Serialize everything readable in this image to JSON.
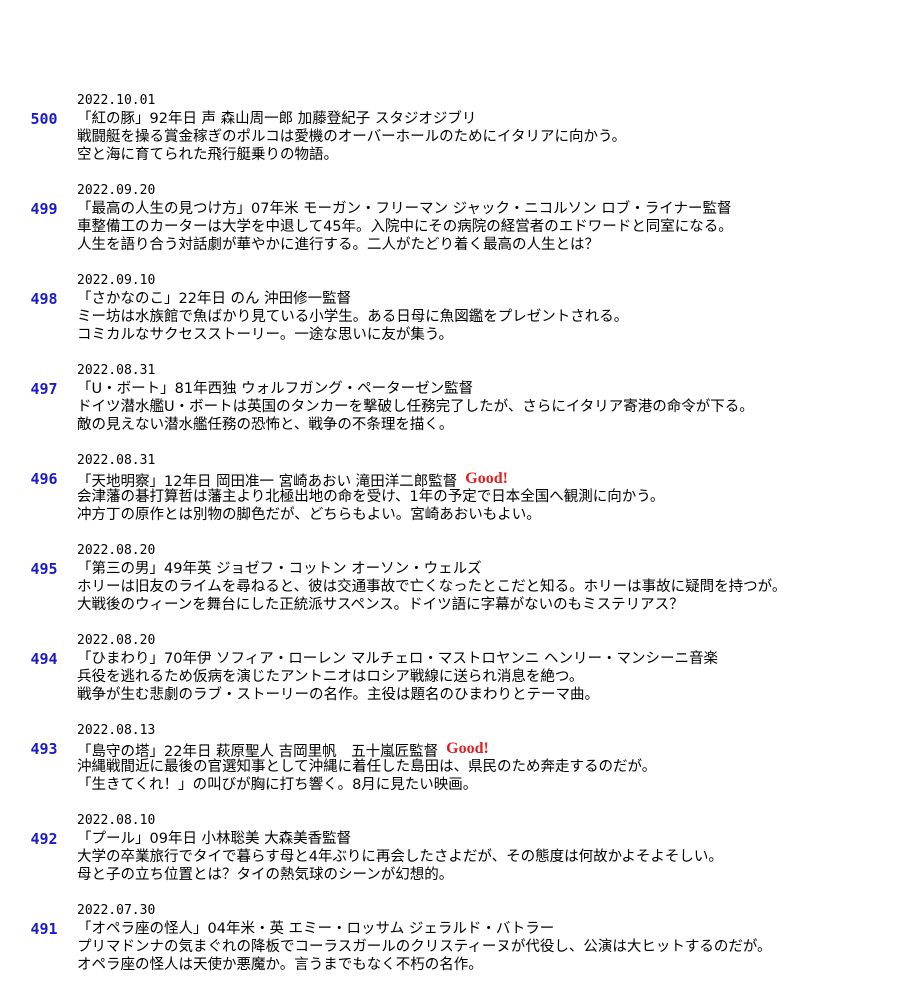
{
  "entries": [
    {
      "number": "500",
      "date": "2022.10.01",
      "title": "「紅の豚」92年日 声 森山周一郎 加藤登紀子 スタジオジブリ",
      "lines": [
        "戦闘艇を操る賞金稼ぎのポルコは愛機のオーバーホールのためにイタリアに向かう。",
        "空と海に育てられた飛行艇乗りの物語。"
      ]
    },
    {
      "number": "499",
      "date": "2022.09.20",
      "title": "「最高の人生の見つけ方」07年米 モーガン・フリーマン ジャック・ニコルソン ロブ・ライナー監督",
      "lines": [
        "車整備工のカーターは大学を中退して45年。入院中にその病院の経営者のエドワードと同室になる。",
        "人生を語り合う対話劇が華やかに進行する。二人がたどり着く最高の人生とは？"
      ]
    },
    {
      "number": "498",
      "date": "2022.09.10",
      "title": "「さかなのこ」22年日 のん 沖田修一監督",
      "lines": [
        "ミー坊は水族館で魚ばかり見ている小学生。ある日母に魚図鑑をプレゼントされる。",
        "コミカルなサクセスストーリー。一途な思いに友が集う。"
      ]
    },
    {
      "number": "497",
      "date": "2022.08.31",
      "title": "「U・ボート」81年西独 ウォルフガング・ペーターゼン監督",
      "lines": [
        "ドイツ潜水艦U・ボートは英国のタンカーを撃破し任務完了したが、さらにイタリア寄港の命令が下る。",
        "敵の見えない潜水艦任務の恐怖と、戦争の不条理を描く。"
      ]
    },
    {
      "number": "496",
      "date": "2022.08.31",
      "title": "「天地明察」12年日 岡田准一 宮崎あおい 滝田洋二郎監督",
      "good": "Good!",
      "lines": [
        "会津藩の碁打算哲は藩主より北極出地の命を受け、1年の予定で日本全国へ観測に向かう。",
        "冲方丁の原作とは別物の脚色だが、どちらもよい。宮崎あおいもよい。"
      ]
    },
    {
      "number": "495",
      "date": "2022.08.20",
      "title": "「第三の男」49年英 ジョゼフ・コットン オーソン・ウェルズ",
      "lines": [
        "ホリーは旧友のライムを尋ねると、彼は交通事故で亡くなったとこだと知る。ホリーは事故に疑問を持つが。",
        "大戦後のウィーンを舞台にした正統派サスペンス。ドイツ語に字幕がないのもミステリアス？"
      ]
    },
    {
      "number": "494",
      "date": "2022.08.20",
      "title": "「ひまわり」70年伊 ソフィア・ローレン マルチェロ・マストロヤンニ ヘンリー・マンシーニ音楽",
      "lines": [
        "兵役を逃れるため仮病を演じたアントニオはロシア戦線に送られ消息を絶つ。",
        "戦争が生む悲劇のラブ・ストーリーの名作。主役は題名のひまわりとテーマ曲。"
      ]
    },
    {
      "number": "493",
      "date": "2022.08.13",
      "title": "「島守の塔」22年日 萩原聖人 吉岡里帆　五十嵐匠監督",
      "good": "Good!",
      "lines": [
        "沖縄戦間近に最後の官選知事として沖縄に着任した島田は、県民のため奔走するのだが。",
        "「生きてくれ！」の叫びが胸に打ち響く。8月に見たい映画。"
      ]
    },
    {
      "number": "492",
      "date": "2022.08.10",
      "title": "「プール」09年日 小林聡美 大森美香監督",
      "lines": [
        "大学の卒業旅行でタイで暮らす母と4年ぶりに再会したさよだが、その態度は何故かよそよそしい。",
        "母と子の立ち位置とは？タイの熱気球のシーンが幻想的。"
      ]
    },
    {
      "number": "491",
      "date": "2022.07.30",
      "title": "「オペラ座の怪人」04年米・英 エミー・ロッサム ジェラルド・バトラー",
      "lines": [
        "プリマドンナの気まぐれの降板でコーラスガールのクリスティーヌが代役し、公演は大ヒットするのだが。",
        "オペラ座の怪人は天使か悪魔か。言うまでもなく不朽の名作。"
      ]
    }
  ]
}
